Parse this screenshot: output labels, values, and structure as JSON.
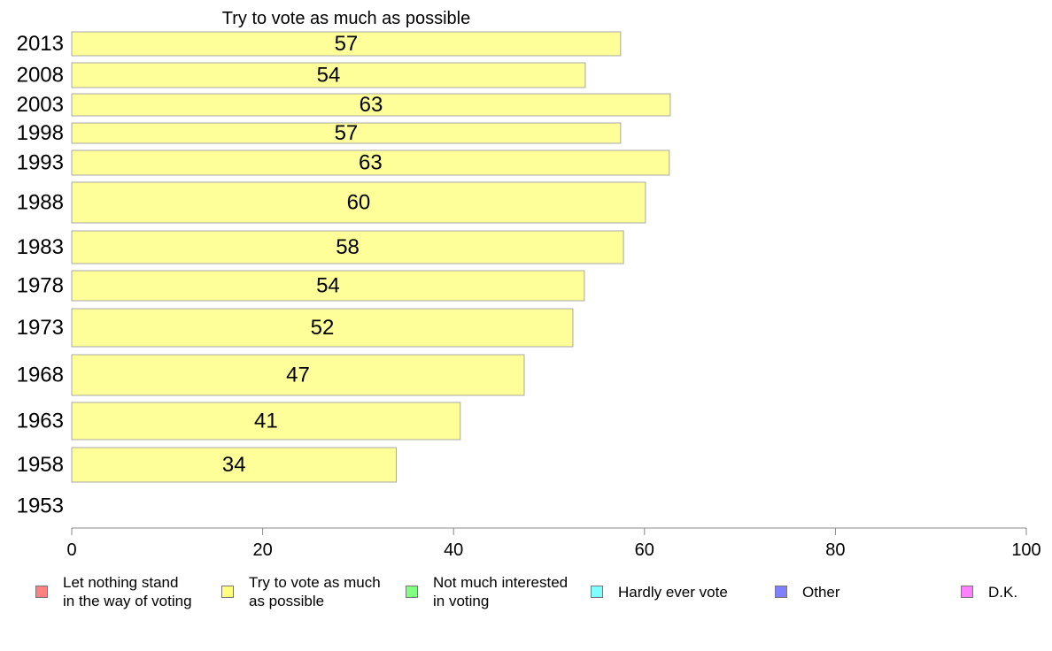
{
  "chart_data": {
    "type": "bar",
    "orientation": "horizontal",
    "title": "Try to vote as much as possible",
    "categories": [
      "2013",
      "2008",
      "2003",
      "1998",
      "1993",
      "1988",
      "1983",
      "1978",
      "1973",
      "1968",
      "1963",
      "1958",
      "1953"
    ],
    "series": [
      {
        "name": "Try to vote as much as possible",
        "color": "#ffff99",
        "values": [
          57.5,
          53.8,
          62.7,
          57.5,
          62.6,
          60.1,
          57.8,
          53.7,
          52.5,
          47.4,
          40.7,
          34.0,
          null
        ],
        "labels": [
          "57",
          "54",
          "63",
          "57",
          "63",
          "60",
          "58",
          "54",
          "52",
          "47",
          "41",
          "34",
          ""
        ]
      }
    ],
    "xlim": [
      0,
      100
    ],
    "xticks": [
      0,
      20,
      40,
      60,
      80,
      100
    ],
    "xlabel": "",
    "ylabel": "",
    "grid": false,
    "legend_position": "bottom",
    "legend": [
      {
        "label": "Let nothing stand\nin the way of voting",
        "color": "#ff8080"
      },
      {
        "label": "Try to vote as much\nas possible",
        "color": "#ffff80"
      },
      {
        "label": "Not much interested\nin voting",
        "color": "#80ff80"
      },
      {
        "label": "Hardly ever vote",
        "color": "#80ffff"
      },
      {
        "label": "Other",
        "color": "#8080ff"
      },
      {
        "label": "D.K.",
        "color": "#ff80ff"
      }
    ]
  }
}
